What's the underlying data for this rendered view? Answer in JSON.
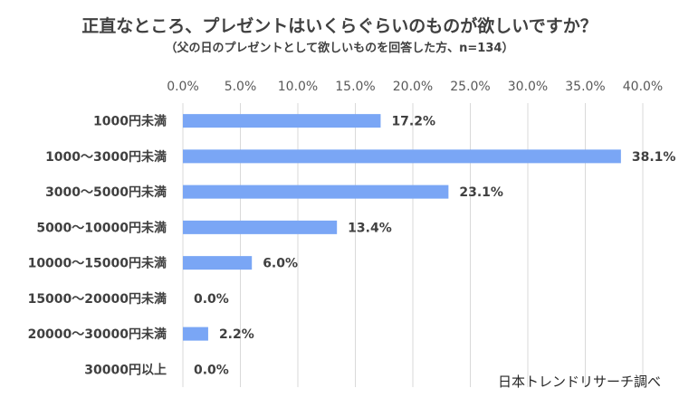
{
  "chart_data": {
    "type": "bar",
    "orientation": "horizontal",
    "title": "正直なところ、プレゼントはいくらぐらいのものが欲しいですか？",
    "subtitle": "（父の日のプレゼントとして欲しいものを回答した方、n=134）",
    "categories": [
      "1000円未満",
      "1000〜3000円未満",
      "3000〜5000円未満",
      "5000〜10000円未満",
      "10000〜15000円未満",
      "15000〜20000円未満",
      "20000〜30000円未満",
      "30000円以上"
    ],
    "values": [
      17.2,
      38.1,
      23.1,
      13.4,
      6.0,
      0.0,
      2.2,
      0.0
    ],
    "data_labels": [
      "17.2%",
      "38.1%",
      "23.1%",
      "13.4%",
      "6.0%",
      "0.0%",
      "2.2%",
      "0.0%"
    ],
    "xlim": [
      0,
      40
    ],
    "xticks": [
      0,
      5,
      10,
      15,
      20,
      25,
      30,
      35,
      40
    ],
    "xtick_labels": [
      "0.0%",
      "5.0%",
      "10.0%",
      "15.0%",
      "20.0%",
      "25.0%",
      "30.0%",
      "35.0%",
      "40.0%"
    ],
    "x_axis_position": "top",
    "grid": true,
    "bar_color": "#7aa6f5",
    "source": "日本トレンドリサーチ調べ"
  }
}
